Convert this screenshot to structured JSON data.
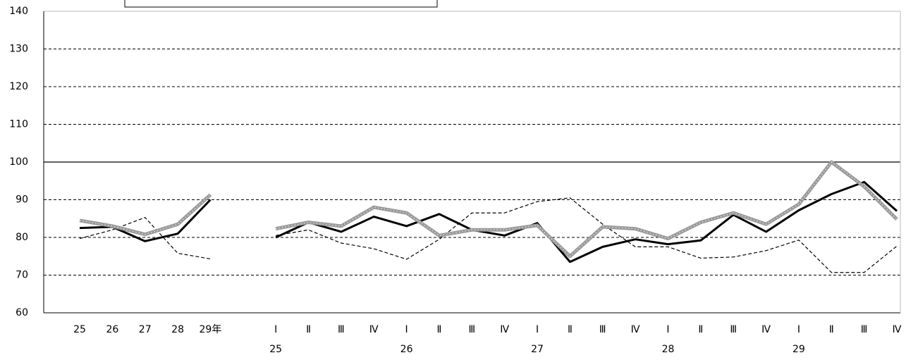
{
  "chart_data": {
    "type": "line",
    "categories": [
      "25",
      "26",
      "27",
      "28",
      "29年",
      null,
      "Ⅰ",
      "Ⅱ",
      "Ⅲ",
      "Ⅳ",
      "Ⅰ",
      "Ⅱ",
      "Ⅲ",
      "Ⅳ",
      "Ⅰ",
      "Ⅱ",
      "Ⅲ",
      "Ⅳ",
      "Ⅰ",
      "Ⅱ",
      "Ⅲ",
      "Ⅳ",
      "Ⅰ",
      "Ⅱ",
      "Ⅲ",
      "Ⅳ"
    ],
    "sublabels": [
      null,
      null,
      null,
      null,
      null,
      null,
      "25",
      null,
      null,
      null,
      "26",
      null,
      null,
      null,
      "27",
      null,
      null,
      null,
      "28",
      null,
      null,
      null,
      "29",
      null,
      null,
      null
    ],
    "ylim": [
      60,
      140
    ],
    "yticks": [
      60,
      70,
      80,
      90,
      100,
      110,
      120,
      130,
      140
    ],
    "grid": true,
    "reference_line": 100,
    "series": [
      {
        "color": "#000000",
        "style": "solid",
        "width": 3,
        "values": [
          82.5,
          82.8,
          79,
          81,
          90,
          null,
          80,
          84,
          81.5,
          85.5,
          83,
          86.2,
          82,
          80.5,
          83.8,
          73.5,
          77.5,
          79.5,
          78.2,
          79.2,
          86,
          81.5,
          87.2,
          91.5,
          94.7,
          87
        ]
      },
      {
        "color": "#000000",
        "style": "dashed",
        "width": 1.2,
        "values": [
          79.7,
          82,
          85.3,
          75.8,
          74.3,
          null,
          80.5,
          82,
          78.5,
          77,
          74.2,
          79.5,
          86.5,
          86.5,
          89.5,
          90.5,
          83.5,
          77.5,
          77.5,
          74.5,
          74.8,
          76.5,
          79.3,
          70.7,
          70.7,
          77.7
        ]
      },
      {
        "color": "#999999",
        "style": "dotted",
        "width": 5,
        "values": [
          84.5,
          83,
          80.8,
          83.5,
          91.3,
          null,
          82.3,
          84,
          83,
          88,
          86.5,
          80.5,
          82,
          82,
          83.2,
          75,
          82.8,
          82.3,
          79.7,
          84,
          86.5,
          83.5,
          88.8,
          100,
          93.5,
          84.8
        ]
      }
    ]
  }
}
